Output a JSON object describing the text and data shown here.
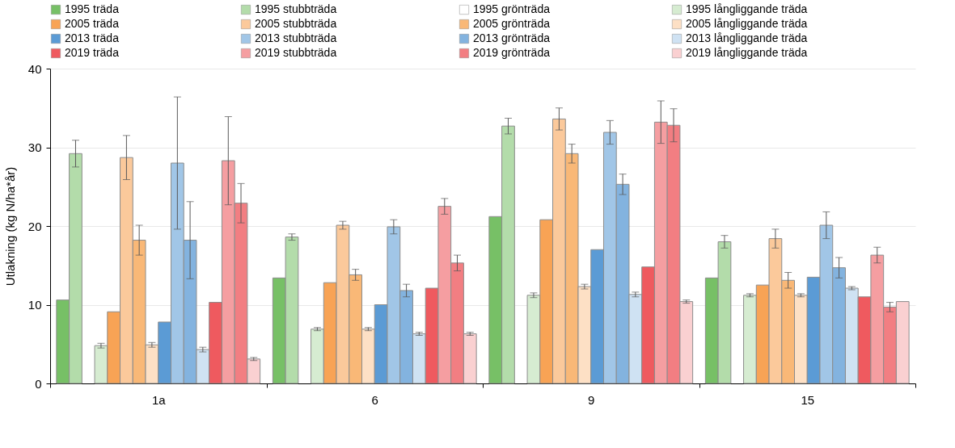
{
  "chart_data": {
    "type": "bar",
    "ylabel": "Utlakning (kg N/ha*år)",
    "categories": [
      "1a",
      "6",
      "9",
      "15"
    ],
    "ylim": [
      0,
      40
    ],
    "yticks": [
      0,
      10,
      20,
      30,
      40
    ],
    "grid": "y",
    "legend": "top",
    "series": [
      {
        "name": "1995 träda",
        "color": "#77c066",
        "values": [
          10.6,
          13.4,
          21.2,
          13.4
        ]
      },
      {
        "name": "1995 stubbträda",
        "color": "#b3dcaa",
        "values": [
          29.2,
          18.6,
          32.7,
          18.0
        ],
        "errors": [
          1.7,
          0.4,
          1.0,
          0.8
        ]
      },
      {
        "name": "1995 grönträda",
        "color": "#ffffff",
        "values": [
          null,
          null,
          null,
          null
        ]
      },
      {
        "name": "1995 långliggande träda",
        "color": "#d6ecd1",
        "values": [
          4.8,
          6.9,
          11.2,
          11.2
        ],
        "errors": [
          0.3,
          0.2,
          0.3,
          0.2
        ]
      },
      {
        "name": "2005 träda",
        "color": "#f8a355",
        "values": [
          9.1,
          12.8,
          20.8,
          12.5
        ]
      },
      {
        "name": "2005 stubbträda",
        "color": "#fbc99b",
        "values": [
          28.7,
          20.1,
          33.6,
          18.4
        ],
        "errors": [
          2.8,
          0.5,
          1.4,
          1.2
        ]
      },
      {
        "name": "2005 grönträda",
        "color": "#f9b877",
        "values": [
          18.2,
          13.8,
          29.2,
          13.1
        ],
        "errors": [
          1.9,
          0.7,
          1.2,
          1.0
        ]
      },
      {
        "name": "2005 långliggande träda",
        "color": "#fde0c5",
        "values": [
          4.9,
          6.9,
          12.3,
          11.2
        ],
        "errors": [
          0.3,
          0.2,
          0.3,
          0.2
        ]
      },
      {
        "name": "2013 träda",
        "color": "#5b9bd5",
        "values": [
          7.8,
          10.0,
          17.0,
          13.5
        ]
      },
      {
        "name": "2013 stubbträda",
        "color": "#a1c6e7",
        "values": [
          28.0,
          19.9,
          31.9,
          20.1
        ],
        "errors": [
          8.4,
          0.9,
          1.5,
          1.7
        ]
      },
      {
        "name": "2013 grönträda",
        "color": "#83b3df",
        "values": [
          18.2,
          11.8,
          25.3,
          14.7
        ],
        "errors": [
          4.9,
          0.8,
          1.3,
          1.3
        ]
      },
      {
        "name": "2013 långliggande träda",
        "color": "#cfe2f3",
        "values": [
          4.3,
          6.3,
          11.3,
          12.1
        ],
        "errors": [
          0.3,
          0.2,
          0.3,
          0.2
        ]
      },
      {
        "name": "2019 träda",
        "color": "#ef5a5f",
        "values": [
          10.3,
          12.1,
          14.8,
          11.0
        ]
      },
      {
        "name": "2019 stubbträda",
        "color": "#f59ea1",
        "values": [
          28.3,
          22.5,
          33.2,
          16.3
        ],
        "errors": [
          5.6,
          1.0,
          2.7,
          1.0
        ]
      },
      {
        "name": "2019 grönträda",
        "color": "#f27e82",
        "values": [
          22.9,
          15.3,
          32.8,
          9.7
        ],
        "errors": [
          2.5,
          1.0,
          2.1,
          0.6
        ]
      },
      {
        "name": "2019 långliggande träda",
        "color": "#fad0d1",
        "values": [
          3.1,
          6.3,
          10.4,
          10.4
        ],
        "errors": [
          0.2,
          0.2,
          0.2,
          null
        ]
      }
    ]
  }
}
